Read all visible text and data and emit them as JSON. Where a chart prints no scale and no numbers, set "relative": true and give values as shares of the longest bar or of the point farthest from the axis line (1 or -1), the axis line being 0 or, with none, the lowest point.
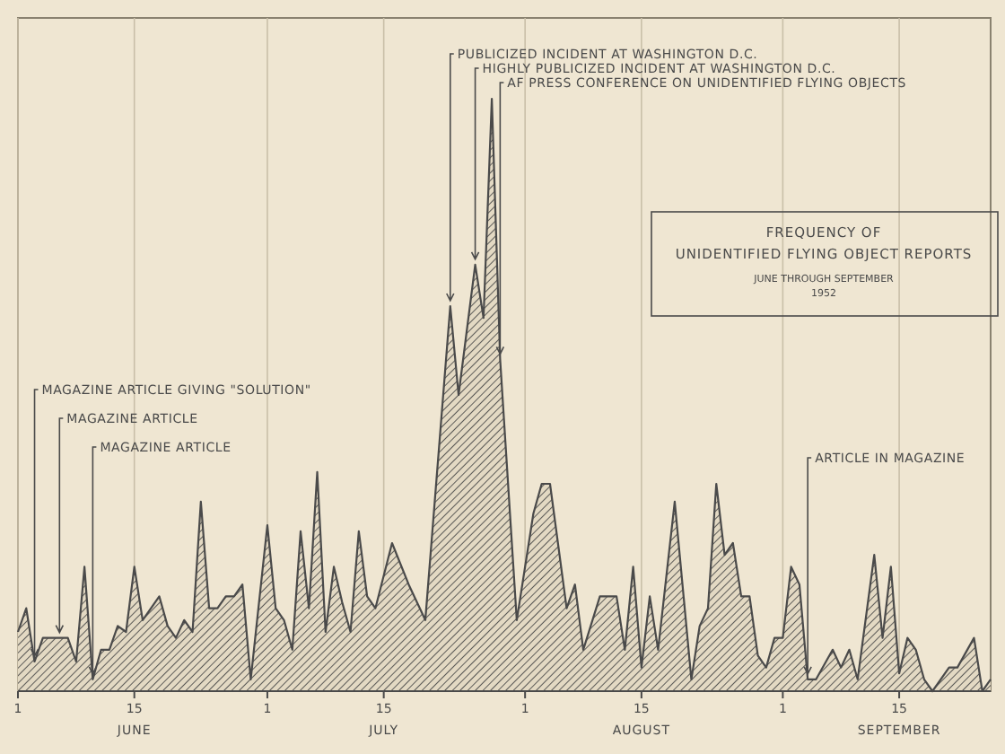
{
  "chart_data": {
    "type": "area",
    "title": "FREQUENCY OF\nUNIDENTIFIED FLYING OBJECT REPORTS",
    "subtitle": "JUNE THROUGH SEPTEMBER\n1952",
    "relative": true,
    "color": "#4a4a4a",
    "grid": "x",
    "x": [
      "1952-06-01",
      "1952-06-02",
      "1952-06-03",
      "1952-06-04",
      "1952-06-07",
      "1952-06-08",
      "1952-06-09",
      "1952-06-10",
      "1952-06-11",
      "1952-06-12",
      "1952-06-13",
      "1952-06-14",
      "1952-06-15",
      "1952-06-16",
      "1952-06-18",
      "1952-06-19",
      "1952-06-20",
      "1952-06-21",
      "1952-06-22",
      "1952-06-23",
      "1952-06-24",
      "1952-06-25",
      "1952-06-26",
      "1952-06-27",
      "1952-06-28",
      "1952-06-29",
      "1952-07-01",
      "1952-07-02",
      "1952-07-03",
      "1952-07-04",
      "1952-07-05",
      "1952-07-06",
      "1952-07-07",
      "1952-07-08",
      "1952-07-09",
      "1952-07-10",
      "1952-07-11",
      "1952-07-12",
      "1952-07-13",
      "1952-07-14",
      "1952-07-16",
      "1952-07-18",
      "1952-07-20",
      "1952-07-23",
      "1952-07-24",
      "1952-07-26",
      "1952-07-27",
      "1952-07-28",
      "1952-07-29",
      "1952-07-31",
      "1952-08-02",
      "1952-08-03",
      "1952-08-04",
      "1952-08-06",
      "1952-08-07",
      "1952-08-08",
      "1952-08-10",
      "1952-08-12",
      "1952-08-13",
      "1952-08-14",
      "1952-08-15",
      "1952-08-16",
      "1952-08-17",
      "1952-08-19",
      "1952-08-21",
      "1952-08-22",
      "1952-08-23",
      "1952-08-24",
      "1952-08-25",
      "1952-08-26",
      "1952-08-27",
      "1952-08-28",
      "1952-08-29",
      "1952-08-30",
      "1952-08-31",
      "1952-09-01",
      "1952-09-02",
      "1952-09-03",
      "1952-09-04",
      "1952-09-05",
      "1952-09-07",
      "1952-09-08",
      "1952-09-09",
      "1952-09-10",
      "1952-09-12",
      "1952-09-13",
      "1952-09-14",
      "1952-09-15",
      "1952-09-16",
      "1952-09-17",
      "1952-09-18",
      "1952-09-19",
      "1952-09-21",
      "1952-09-22",
      "1952-09-24",
      "1952-09-25",
      "1952-09-26"
    ],
    "values": [
      0.1,
      0.14,
      0.05,
      0.09,
      0.09,
      0.05,
      0.21,
      0.02,
      0.07,
      0.07,
      0.11,
      0.1,
      0.21,
      0.12,
      0.16,
      0.11,
      0.09,
      0.12,
      0.1,
      0.32,
      0.14,
      0.14,
      0.16,
      0.16,
      0.18,
      0.02,
      0.28,
      0.14,
      0.12,
      0.07,
      0.27,
      0.14,
      0.37,
      0.1,
      0.21,
      0.15,
      0.1,
      0.27,
      0.16,
      0.14,
      0.25,
      0.18,
      0.12,
      0.65,
      0.5,
      0.72,
      0.63,
      1,
      0.56,
      0.12,
      0.3,
      0.35,
      0.35,
      0.14,
      0.18,
      0.07,
      0.16,
      0.16,
      0.07,
      0.21,
      0.04,
      0.16,
      0.07,
      0.32,
      0.02,
      0.11,
      0.14,
      0.35,
      0.23,
      0.25,
      0.16,
      0.16,
      0.06,
      0.04,
      0.09,
      0.09,
      0.21,
      0.18,
      0.02,
      0.02,
      0.07,
      0.04,
      0.07,
      0.02,
      0.23,
      0.09,
      0.21,
      0.03,
      0.09,
      0.07,
      0.02,
      0,
      0.04,
      0.04,
      0.09,
      0,
      0.02
    ],
    "xlim": [
      "1952-06-01",
      "1952-09-26"
    ],
    "xticks": [
      {
        "value": "1952-06-01",
        "label": "1"
      },
      {
        "value": "1952-06-15",
        "label": "15"
      },
      {
        "value": "1952-07-01",
        "label": "1"
      },
      {
        "value": "1952-07-15",
        "label": "15"
      },
      {
        "value": "1952-08-01",
        "label": "1"
      },
      {
        "value": "1952-08-15",
        "label": "15"
      },
      {
        "value": "1952-09-01",
        "label": "1"
      },
      {
        "value": "1952-09-15",
        "label": "15"
      }
    ],
    "annotations": [
      {
        "text": "MAGAZINE ARTICLE GIVING \"SOLUTION\"",
        "x": "1952-06-03",
        "y": 0.05
      },
      {
        "text": "MAGAZINE ARTICLE",
        "x": "1952-06-06",
        "y": 0.09
      },
      {
        "text": "MAGAZINE ARTICLE",
        "x": "1952-06-10",
        "y": 0.02
      },
      {
        "text": "PUBLICIZED INCIDENT AT WASHINGTON D.C.",
        "x": "1952-07-23",
        "y": 0.65
      },
      {
        "text": "HIGHLY PUBLICIZED INCIDENT AT WASHINGTON D.C.",
        "x": "1952-07-26",
        "y": 0.72
      },
      {
        "text": "AF PRESS CONFERENCE ON UNIDENTIFIED FLYING OBJECTS",
        "x": "1952-07-29",
        "y": 0.56
      },
      {
        "text": "ARTICLE IN MAGAZINE",
        "x": "1952-09-04",
        "y": 0.02
      },
      "JUNE",
      "JULY",
      "AUGUST",
      "SEPTEMBER"
    ]
  }
}
